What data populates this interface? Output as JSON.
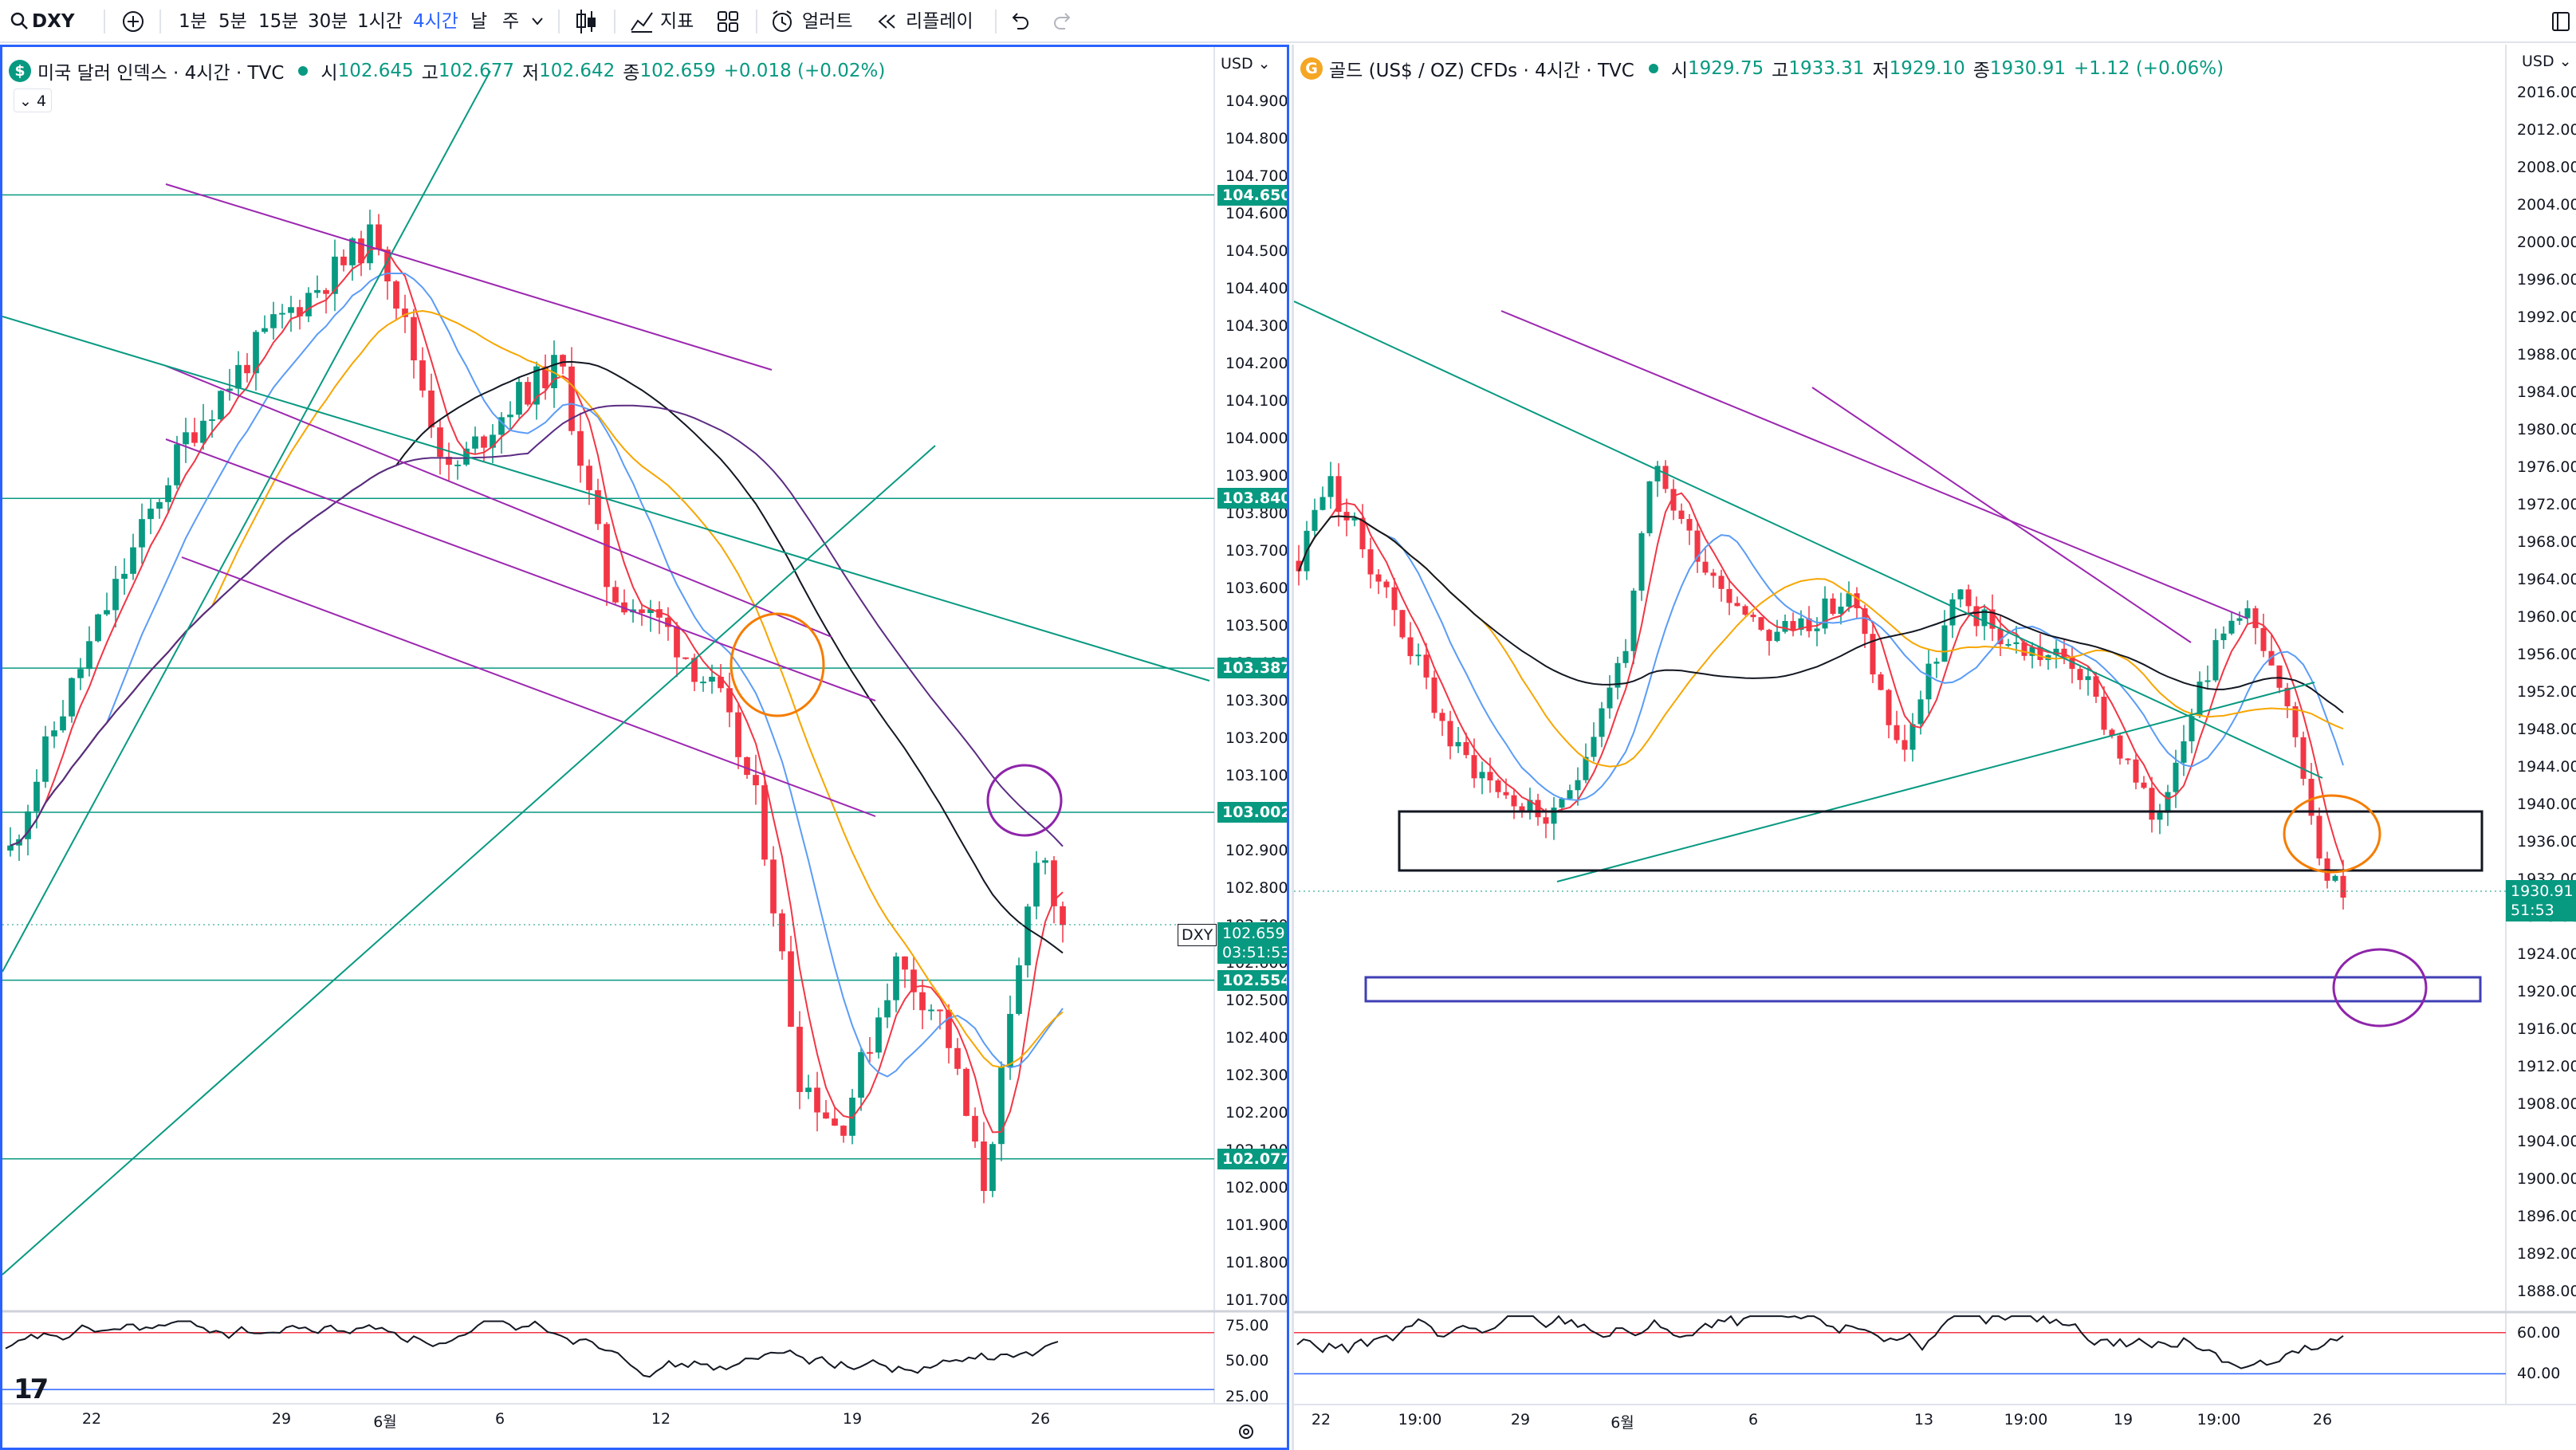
{
  "toolbar": {
    "symbol": "DXY",
    "intervals": [
      "1분",
      "5분",
      "15분",
      "30분",
      "1시간",
      "4시간",
      "날",
      "주"
    ],
    "active_interval": "4시간",
    "indicators_label": "지표",
    "alert_label": "얼러트",
    "replay_label": "리플레이"
  },
  "left": {
    "legend": {
      "badge": "$",
      "title": "미국 달러 인덱스 · 4시간 · TVC",
      "open_k": "시",
      "open": "102.645",
      "high_k": "고",
      "high": "102.677",
      "low_k": "저",
      "low": "102.642",
      "close_k": "종",
      "close": "102.659",
      "change": "+0.018 (+0.02%)"
    },
    "indicator_count": "4",
    "currency": "USD",
    "price_ticks": [
      "104.900",
      "104.800",
      "104.700",
      "104.600",
      "104.500",
      "104.400",
      "104.300",
      "104.200",
      "104.100",
      "104.000",
      "103.900",
      "103.800",
      "103.700",
      "103.600",
      "103.500",
      "103.400",
      "103.300",
      "103.200",
      "103.100",
      "103.000",
      "102.900",
      "102.800",
      "102.700",
      "102.600",
      "102.500",
      "102.400",
      "102.300",
      "102.200",
      "102.100",
      "102.000",
      "101.900",
      "101.800",
      "101.700"
    ],
    "levels": [
      "104.650",
      "103.840",
      "103.387",
      "103.002",
      "102.554",
      "102.077"
    ],
    "current": {
      "symbol": "DXY",
      "price": "102.659",
      "countdown": "03:51:53"
    },
    "rsi_ticks": [
      "75.00",
      "50.00",
      "25.00"
    ],
    "time_ticks": [
      "22",
      "29",
      "6월",
      "6",
      "12",
      "19",
      "26"
    ],
    "colors": {
      "up": "#089981",
      "down": "#f23645",
      "level": "#089981",
      "channel": "#9c27b0",
      "frame": "#2962ff"
    }
  },
  "right": {
    "legend": {
      "badge": "G",
      "title": "골드 (US$ / OZ) CFDs · 4시간 · TVC",
      "open_k": "시",
      "open": "1929.75",
      "high_k": "고",
      "high": "1933.31",
      "low_k": "저",
      "low": "1929.10",
      "close_k": "종",
      "close": "1930.91",
      "change": "+1.12 (+0.06%)"
    },
    "currency": "USD",
    "price_ticks": [
      "2016.00",
      "2012.00",
      "2008.00",
      "2004.00",
      "2000.00",
      "1996.00",
      "1992.00",
      "1988.00",
      "1984.00",
      "1980.00",
      "1976.00",
      "1972.00",
      "1968.00",
      "1964.00",
      "1960.00",
      "1956.00",
      "1952.00",
      "1948.00",
      "1944.00",
      "1940.00",
      "1936.00",
      "1932.00",
      "1928.00",
      "1924.00",
      "1920.00",
      "1916.00",
      "1912.00",
      "1908.00",
      "1904.00",
      "1900.00",
      "1896.00",
      "1892.00",
      "1888.00"
    ],
    "current": {
      "price": "1930.91",
      "countdown": "51:53"
    },
    "rsi_ticks": [
      "60.00",
      "40.00"
    ],
    "time_ticks": [
      "22",
      "19:00",
      "29",
      "6월",
      "6",
      "13",
      "19:00",
      "19",
      "19:00",
      "26"
    ]
  }
}
